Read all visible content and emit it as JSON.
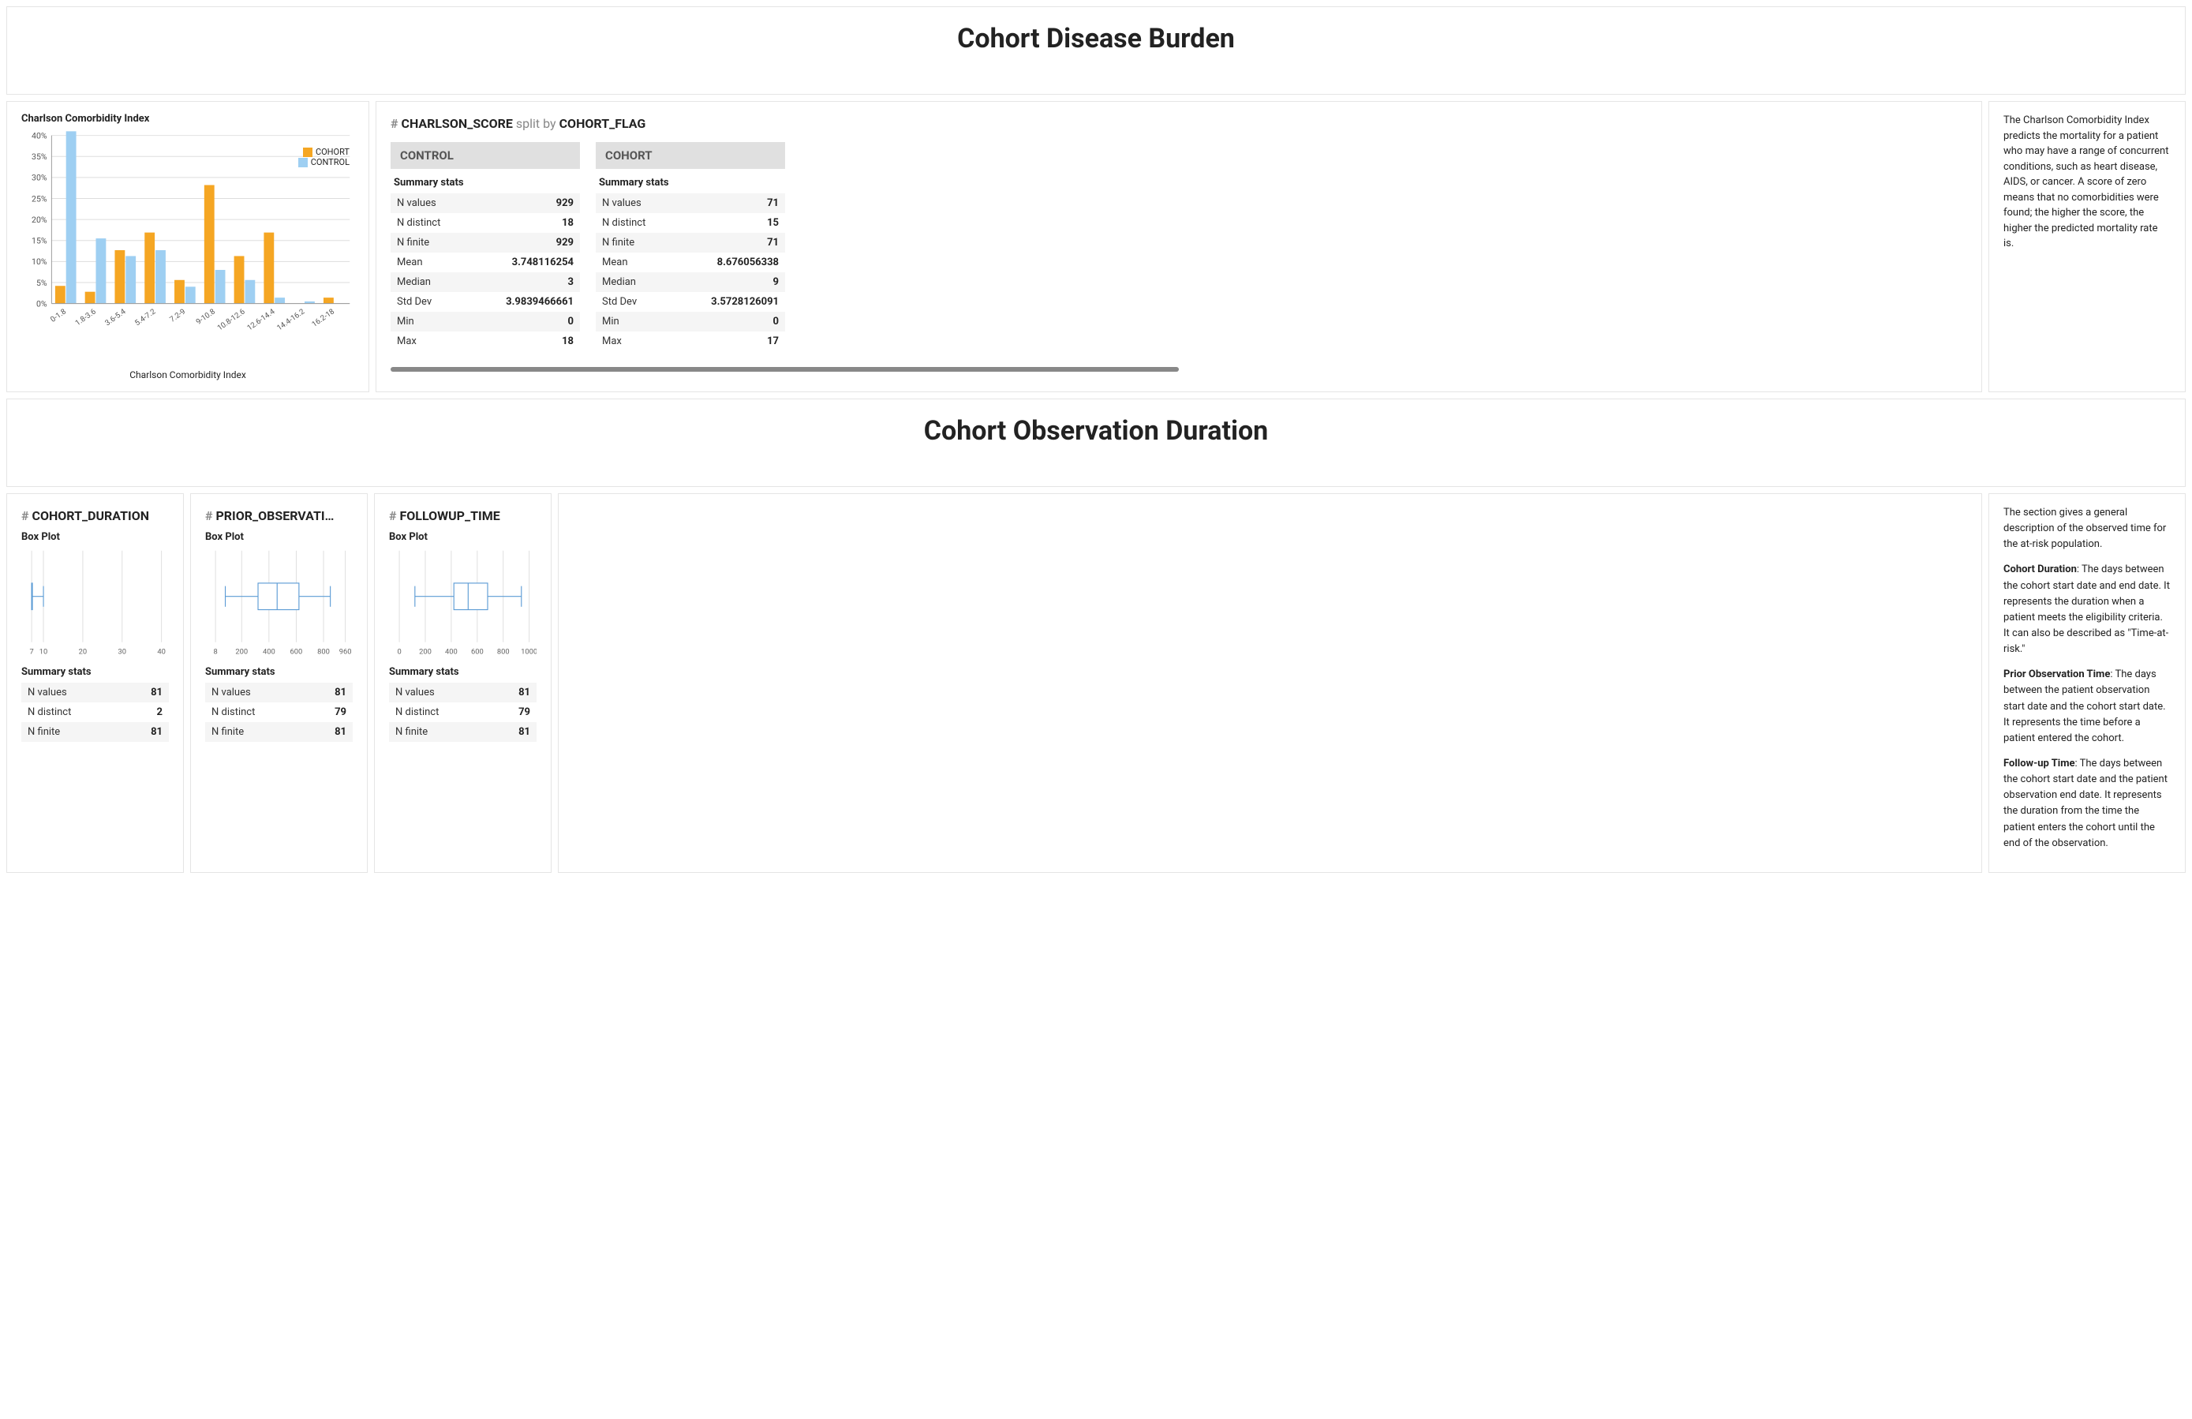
{
  "colors": {
    "cohort": "#f5a623",
    "control": "#9ecff2",
    "boxplot": "#5b9bd5",
    "grid": "#dddddd",
    "axis": "#888888",
    "panel_border": "#e5e5e5",
    "stat_alt_bg": "#f5f5f5",
    "col_header_bg": "#e0e0e0",
    "text": "#222222"
  },
  "section1": {
    "title": "Cohort Disease Burden",
    "chart": {
      "title": "Charlson Comorbidity Index",
      "type": "bar-grouped",
      "legend": [
        {
          "label": "COHORT",
          "color": "#f5a623"
        },
        {
          "label": "CONTROL",
          "color": "#9ecff2"
        }
      ],
      "x_label": "Charlson Comorbidity Index",
      "ylim": [
        0,
        40
      ],
      "ytick_step": 5,
      "y_format": "pct",
      "categories": [
        "0-1.8",
        "1.8-3.6",
        "3.6-5.4",
        "5.4-7.2",
        "7.2-9",
        "9-10.8",
        "10.8-12.6",
        "12.6-14.4",
        "14.4-16.2",
        "16.2-18"
      ],
      "series": {
        "COHORT": [
          4.2,
          2.8,
          12.7,
          16.9,
          5.6,
          28.2,
          11.3,
          16.9,
          0.0,
          1.4
        ],
        "CONTROL": [
          41.0,
          15.5,
          11.3,
          12.7,
          4.0,
          8.0,
          5.6,
          1.4,
          0.5,
          0.0
        ]
      }
    },
    "split": {
      "field": "CHARLSON_SCORE",
      "by": "COHORT_FLAG",
      "summary_label": "Summary stats",
      "columns": [
        {
          "name": "CONTROL",
          "rows": [
            {
              "label": "N values",
              "value": "929"
            },
            {
              "label": "N distinct",
              "value": "18"
            },
            {
              "label": "N finite",
              "value": "929"
            },
            {
              "label": "Mean",
              "value": "3.748116254"
            },
            {
              "label": "Median",
              "value": "3"
            },
            {
              "label": "Std Dev",
              "value": "3.9839466661"
            },
            {
              "label": "Min",
              "value": "0"
            },
            {
              "label": "Max",
              "value": "18"
            }
          ]
        },
        {
          "name": "COHORT",
          "rows": [
            {
              "label": "N values",
              "value": "71"
            },
            {
              "label": "N distinct",
              "value": "15"
            },
            {
              "label": "N finite",
              "value": "71"
            },
            {
              "label": "Mean",
              "value": "8.676056338"
            },
            {
              "label": "Median",
              "value": "9"
            },
            {
              "label": "Std Dev",
              "value": "3.5728126091"
            },
            {
              "label": "Min",
              "value": "0"
            },
            {
              "label": "Max",
              "value": "17"
            }
          ]
        }
      ]
    },
    "description": "The Charlson Comorbidity Index predicts the mortality for a patient who may have a range of concurrent conditions, such as heart disease, AIDS, or cancer. A score of zero means that no comorbidities were found; the higher the score, the higher the predicted mortality rate is."
  },
  "section2": {
    "title": "Cohort Observation Duration",
    "boxplot_label": "Box Plot",
    "summary_label": "Summary stats",
    "boxes": [
      {
        "name": "COHORT_DURATION",
        "boxplot": {
          "xlim": [
            7,
            40
          ],
          "ticks": [
            7,
            10,
            20,
            30,
            40
          ],
          "min": 7,
          "q1": 7,
          "median": 7,
          "q3": 7,
          "max": 10,
          "color": "#5b9bd5"
        },
        "stats": [
          {
            "label": "N values",
            "value": "81"
          },
          {
            "label": "N distinct",
            "value": "2"
          },
          {
            "label": "N finite",
            "value": "81"
          }
        ]
      },
      {
        "name": "PRIOR_OBSERVATI…",
        "boxplot": {
          "xlim": [
            8,
            960
          ],
          "ticks": [
            8,
            200,
            400,
            600,
            800,
            960
          ],
          "min": 80,
          "q1": 320,
          "median": 460,
          "q3": 620,
          "max": 850,
          "color": "#5b9bd5"
        },
        "stats": [
          {
            "label": "N values",
            "value": "81"
          },
          {
            "label": "N distinct",
            "value": "79"
          },
          {
            "label": "N finite",
            "value": "81"
          }
        ]
      },
      {
        "name": "FOLLOWUP_TIME",
        "boxplot": {
          "xlim": [
            0,
            1000
          ],
          "ticks": [
            0,
            200,
            400,
            600,
            800,
            1000
          ],
          "min": 120,
          "q1": 420,
          "median": 530,
          "q3": 680,
          "max": 940,
          "color": "#5b9bd5"
        },
        "stats": [
          {
            "label": "N values",
            "value": "81"
          },
          {
            "label": "N distinct",
            "value": "79"
          },
          {
            "label": "N finite",
            "value": "81"
          }
        ]
      }
    ],
    "description": {
      "intro": "The section gives a general description of the observed time for the at-risk population.",
      "items": [
        {
          "term": "Cohort Duration",
          "text": ": The days between the cohort start date and end date. It represents the duration when a patient meets the eligibility criteria. It can also be described as \"Time-at-risk.\""
        },
        {
          "term": "Prior Observation Time",
          "text": ": The days between the patient observation start date and the cohort start date. It represents the time before a patient entered the cohort."
        },
        {
          "term": "Follow-up Time",
          "text": ": The days between the cohort start date and the patient observation end date. It represents the duration from the time the patient enters the cohort until the end of the observation."
        }
      ]
    }
  }
}
